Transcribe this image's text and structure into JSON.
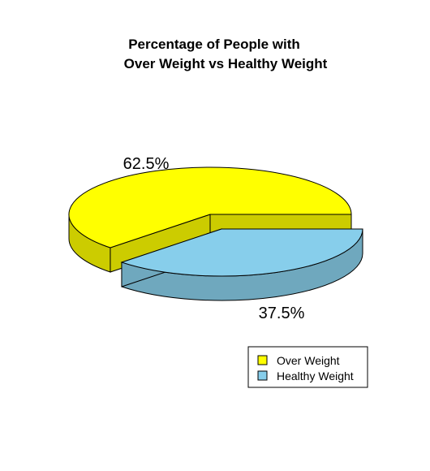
{
  "chart_data": {
    "type": "pie",
    "title_lines": [
      "Percentage of People with",
      "Over Weight vs Healthy Weight"
    ],
    "slices": [
      {
        "name": "Over Weight",
        "value": 62.5,
        "label": "62.5%",
        "color": "#FFFF00",
        "side_color": "#CCCC00"
      },
      {
        "name": "Healthy Weight",
        "value": 37.5,
        "label": "37.5%",
        "color": "#87CEEB",
        "side_color": "#6FA8BE"
      }
    ],
    "legend_position": "bottom-right",
    "exploded": true,
    "three_d": true
  }
}
